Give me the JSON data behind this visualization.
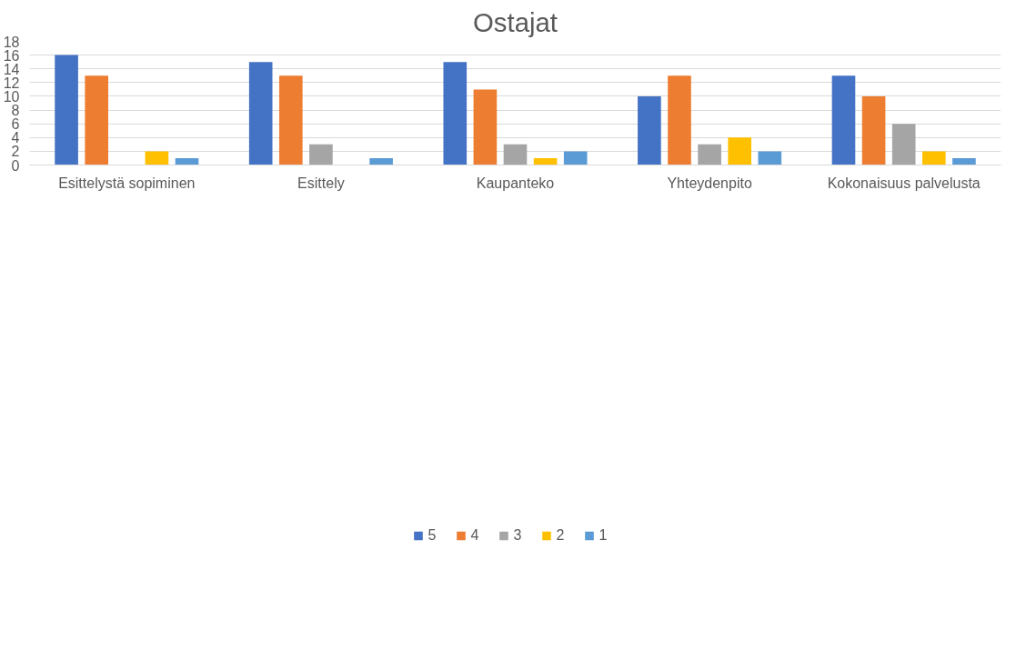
{
  "chart_data": {
    "type": "bar",
    "title": "Ostajat",
    "categories": [
      "Esittelystä sopiminen",
      "Esittely",
      "Kaupanteko",
      "Yhteydenpito",
      "Kokonaisuus palvelusta"
    ],
    "series": [
      {
        "name": "5",
        "color": "#4472c4",
        "values": [
          16,
          15,
          15,
          10,
          13
        ]
      },
      {
        "name": "4",
        "color": "#ed7d31",
        "values": [
          13,
          13,
          11,
          13,
          10
        ]
      },
      {
        "name": "3",
        "color": "#a5a5a5",
        "values": [
          0,
          3,
          3,
          3,
          6
        ]
      },
      {
        "name": "2",
        "color": "#ffc000",
        "values": [
          2,
          0,
          1,
          4,
          2
        ]
      },
      {
        "name": "1",
        "color": "#5b9bd5",
        "values": [
          1,
          1,
          2,
          2,
          1
        ]
      }
    ],
    "ylim": [
      0,
      18
    ],
    "yticks": [
      0,
      2,
      4,
      6,
      8,
      10,
      12,
      14,
      16,
      18
    ],
    "grid": "y",
    "legend": "bottom"
  }
}
